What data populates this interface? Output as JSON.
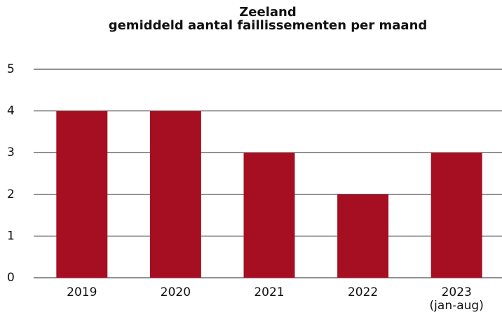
{
  "chart_data": {
    "type": "bar",
    "title": "Zeeland\ngemiddeld aantal faillissementen per maand",
    "categories": [
      "2019",
      "2020",
      "2021",
      "2022",
      "2023\n(jan-aug)"
    ],
    "values": [
      4,
      4,
      3,
      2,
      3
    ],
    "color": "#a50f21",
    "ylim": [
      0,
      5
    ],
    "yticks": [
      0,
      1,
      2,
      3,
      4,
      5
    ],
    "grid": true
  }
}
